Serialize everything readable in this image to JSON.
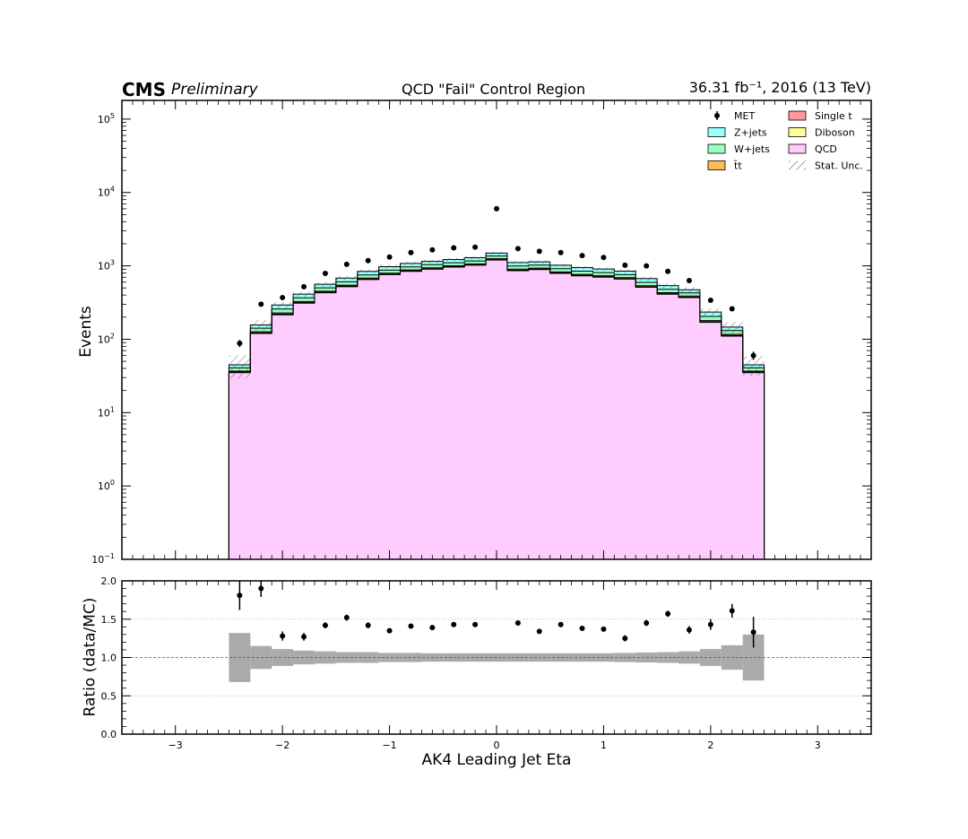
{
  "header": {
    "experiment": "CMS",
    "status": "Preliminary",
    "title": "QCD \"Fail\" Control Region",
    "lumi": "36.31 fb⁻¹, 2016 (13 TeV)"
  },
  "chart_data": [
    {
      "type": "stacked-histogram",
      "panel": "main",
      "ylabel": "Events",
      "yscale": "log",
      "ylim": [
        0.1,
        180000
      ],
      "xlim": [
        -3.5,
        3.5
      ],
      "bin_edges": [
        -2.5,
        -2.3,
        -2.1,
        -1.9,
        -1.7,
        -1.5,
        -1.3,
        -1.1,
        -0.9,
        -0.7,
        -0.5,
        -0.3,
        -0.1,
        0.1,
        0.3,
        0.5,
        0.7,
        0.9,
        1.1,
        1.3,
        1.5,
        1.7,
        1.9,
        2.1,
        2.3,
        2.5
      ],
      "series": [
        {
          "name": "QCD",
          "color": "#ffccff",
          "values": [
            35,
            120,
            215,
            310,
            430,
            520,
            650,
            760,
            840,
            900,
            960,
            1020,
            1200,
            860,
            890,
            790,
            730,
            700,
            660,
            510,
            410,
            370,
            170,
            110,
            35
          ]
        },
        {
          "name": "Diboson",
          "color": "#ffff99",
          "values": [
            0.5,
            1.5,
            3,
            4,
            5,
            6,
            7,
            8,
            9,
            9,
            10,
            10,
            11,
            9,
            9,
            8,
            8,
            7,
            7,
            6,
            5,
            4,
            2,
            1.5,
            0.5
          ]
        },
        {
          "name": "Single t",
          "color": "#ff9999",
          "values": [
            0.3,
            1,
            2,
            2.5,
            3,
            4,
            4.5,
            5,
            5.5,
            6,
            6,
            6.5,
            7,
            6,
            6,
            5.5,
            5,
            5,
            4.5,
            4,
            3,
            2.5,
            1.5,
            1,
            0.3
          ]
        },
        {
          "name": "t̄t",
          "color": "#ffbb55",
          "values": [
            1,
            4,
            8,
            10,
            13,
            16,
            19,
            22,
            25,
            27,
            28,
            29,
            32,
            27,
            26,
            24,
            22,
            20,
            19,
            16,
            13,
            11,
            6,
            4,
            1
          ]
        },
        {
          "name": "W+jets",
          "color": "#99ffbb",
          "values": [
            4,
            15,
            30,
            40,
            50,
            60,
            70,
            80,
            90,
            95,
            98,
            100,
            110,
            95,
            92,
            88,
            82,
            78,
            70,
            60,
            48,
            40,
            25,
            15,
            4
          ]
        },
        {
          "name": "Z+jets",
          "color": "#99ffff",
          "values": [
            4,
            15,
            35,
            45,
            60,
            75,
            90,
            100,
            110,
            115,
            120,
            125,
            130,
            115,
            110,
            105,
            100,
            95,
            85,
            75,
            60,
            45,
            30,
            15,
            4
          ]
        }
      ],
      "stat_unc_label": "Stat. Unc.",
      "stat_unc_rel": [
        0.35,
        0.16,
        0.1,
        0.08,
        0.07,
        0.06,
        0.06,
        0.055,
        0.05,
        0.05,
        0.05,
        0.05,
        0.05,
        0.05,
        0.05,
        0.05,
        0.05,
        0.05,
        0.055,
        0.06,
        0.07,
        0.08,
        0.12,
        0.17,
        0.3
      ],
      "data": {
        "name": "MET",
        "x": [
          -2.4,
          -2.2,
          -2.0,
          -1.8,
          -1.6,
          -1.4,
          -1.2,
          -1.0,
          -0.8,
          -0.6,
          -0.4,
          -0.2,
          0.0,
          0.2,
          0.4,
          0.6,
          0.8,
          1.0,
          1.2,
          1.4,
          1.6,
          1.8,
          2.0,
          2.2,
          2.4
        ],
        "y": [
          88,
          300,
          370,
          520,
          790,
          1050,
          1180,
          1320,
          1520,
          1650,
          1760,
          1800,
          6000,
          1720,
          1580,
          1520,
          1380,
          1300,
          1020,
          1000,
          840,
          630,
          340,
          260,
          60
        ],
        "yerr_rel": [
          0.11,
          0.06,
          0.05,
          0.045,
          0.035,
          0.03,
          0.03,
          0.028,
          0.026,
          0.025,
          0.024,
          0.024,
          0.013,
          0.024,
          0.025,
          0.026,
          0.027,
          0.028,
          0.031,
          0.032,
          0.035,
          0.04,
          0.055,
          0.065,
          0.13
        ]
      },
      "legend": {
        "placement": "top-right",
        "columns": 2
      }
    },
    {
      "type": "scatter",
      "panel": "ratio",
      "xlabel": "AK4 Leading Jet Eta",
      "ylabel": "Ratio (data/MC)",
      "ylim": [
        0.0,
        2.0
      ],
      "y_ticks": [
        0.0,
        0.5,
        1.0,
        1.5,
        2.0
      ],
      "x_ticks": [
        -3,
        -2,
        -1,
        0,
        1,
        2,
        3
      ],
      "reference_line": 1.0,
      "grid_lines": [
        0.5,
        1.5
      ],
      "x": [
        -2.4,
        -2.2,
        -2.0,
        -1.8,
        -1.6,
        -1.4,
        -1.2,
        -1.0,
        -0.8,
        -0.6,
        -0.4,
        -0.2,
        0.2,
        0.4,
        0.6,
        0.8,
        1.0,
        1.2,
        1.4,
        1.6,
        1.8,
        2.0,
        2.2,
        2.4
      ],
      "y": [
        1.81,
        1.9,
        1.28,
        1.27,
        1.42,
        1.52,
        1.42,
        1.35,
        1.41,
        1.39,
        1.43,
        1.43,
        1.45,
        1.34,
        1.43,
        1.38,
        1.37,
        1.25,
        1.45,
        1.57,
        1.36,
        1.43,
        1.61,
        1.33
      ],
      "yerr": [
        0.19,
        0.11,
        0.06,
        0.05,
        0.04,
        0.04,
        0.04,
        0.03,
        0.03,
        0.03,
        0.03,
        0.03,
        0.03,
        0.03,
        0.03,
        0.03,
        0.03,
        0.04,
        0.04,
        0.04,
        0.05,
        0.07,
        0.09,
        0.2
      ],
      "mc_unc_band": [
        0.32,
        0.15,
        0.11,
        0.09,
        0.08,
        0.07,
        0.07,
        0.06,
        0.06,
        0.055,
        0.055,
        0.055,
        0.055,
        0.055,
        0.055,
        0.055,
        0.055,
        0.055,
        0.06,
        0.065,
        0.07,
        0.08,
        0.11,
        0.16,
        0.3
      ]
    }
  ]
}
